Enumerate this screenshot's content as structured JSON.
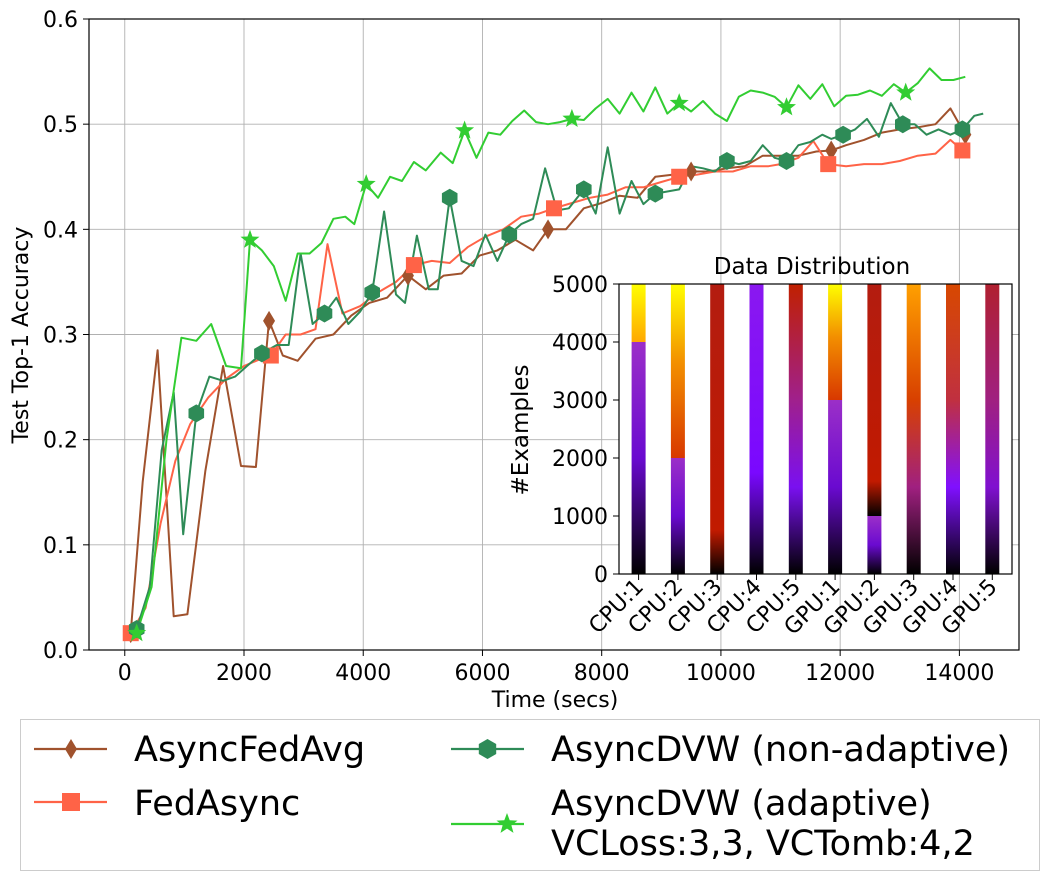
{
  "chart_data": [
    {
      "type": "line",
      "xlabel": "Time (secs)",
      "ylabel": "Test Top-1 Accuracy",
      "xlim": [
        -600,
        15000
      ],
      "ylim": [
        0,
        0.6
      ],
      "xticks": [
        0,
        2000,
        4000,
        6000,
        8000,
        10000,
        12000,
        14000
      ],
      "yticks": [
        0.0,
        0.1,
        0.2,
        0.3,
        0.4,
        0.5,
        0.6
      ],
      "xtick_labels": [
        "0",
        "2000",
        "4000",
        "6000",
        "8000",
        "10000",
        "12000",
        "14000"
      ],
      "ytick_labels": [
        "0.0",
        "0.1",
        "0.2",
        "0.3",
        "0.4",
        "0.5",
        "0.6"
      ],
      "grid": true,
      "series": [
        {
          "name": "AsyncFedAvg",
          "color": "#a0522d",
          "marker": "thin_diamond",
          "x": [
            100,
            300,
            550,
            820,
            1050,
            1350,
            1650,
            1950,
            2200,
            2420,
            2650,
            2900,
            3200,
            3500,
            3800,
            4100,
            4400,
            4750,
            5050,
            5350,
            5650,
            5950,
            6250,
            6550,
            6850,
            7100,
            7400,
            7700,
            8000,
            8300,
            8600,
            8900,
            9200,
            9500,
            9800,
            10100,
            10400,
            10700,
            11000,
            11300,
            11600,
            11850,
            12100,
            12400,
            12700,
            13000,
            13300,
            13600,
            13850,
            14100
          ],
          "y": [
            0.016,
            0.16,
            0.285,
            0.032,
            0.034,
            0.17,
            0.27,
            0.175,
            0.174,
            0.313,
            0.28,
            0.275,
            0.296,
            0.3,
            0.318,
            0.33,
            0.335,
            0.356,
            0.343,
            0.356,
            0.358,
            0.375,
            0.38,
            0.39,
            0.38,
            0.4,
            0.4,
            0.42,
            0.425,
            0.432,
            0.43,
            0.45,
            0.452,
            0.455,
            0.455,
            0.458,
            0.46,
            0.47,
            0.47,
            0.47,
            0.474,
            0.475,
            0.48,
            0.485,
            0.492,
            0.495,
            0.497,
            0.5,
            0.515,
            0.49
          ],
          "marker_indices": [
            0,
            9,
            17,
            25,
            33,
            41,
            49
          ]
        },
        {
          "name": "FedAsync",
          "color": "#ff6347",
          "marker": "square",
          "x": [
            100,
            350,
            600,
            850,
            1100,
            1400,
            1700,
            2000,
            2250,
            2450,
            2700,
            2950,
            3200,
            3400,
            3650,
            3950,
            4250,
            4550,
            4850,
            5150,
            5450,
            5750,
            6050,
            6350,
            6650,
            6950,
            7200,
            7500,
            7800,
            8100,
            8400,
            8700,
            9000,
            9300,
            9600,
            9900,
            10200,
            10500,
            10800,
            11000,
            11300,
            11550,
            11800,
            12100,
            12400,
            12700,
            13000,
            13300,
            13600,
            13850,
            14050
          ],
          "y": [
            0.016,
            0.04,
            0.12,
            0.18,
            0.215,
            0.24,
            0.258,
            0.27,
            0.276,
            0.28,
            0.3,
            0.3,
            0.305,
            0.386,
            0.32,
            0.327,
            0.34,
            0.35,
            0.366,
            0.37,
            0.368,
            0.383,
            0.393,
            0.4,
            0.412,
            0.415,
            0.42,
            0.425,
            0.43,
            0.433,
            0.44,
            0.44,
            0.445,
            0.45,
            0.452,
            0.455,
            0.455,
            0.46,
            0.46,
            0.462,
            0.468,
            0.484,
            0.462,
            0.46,
            0.462,
            0.462,
            0.465,
            0.47,
            0.472,
            0.485,
            0.475
          ],
          "marker_indices": [
            0,
            9,
            18,
            26,
            33,
            42,
            50
          ]
        },
        {
          "name": "AsyncDVW (non-adaptive)",
          "color": "#2e8b57",
          "marker": "hexagon",
          "x": [
            200,
            420,
            620,
            820,
            980,
            1200,
            1420,
            1650,
            1850,
            2050,
            2300,
            2550,
            2750,
            2950,
            3150,
            3350,
            3550,
            3750,
            3950,
            4150,
            4350,
            4550,
            4700,
            4900,
            5100,
            5250,
            5450,
            5650,
            5850,
            6050,
            6250,
            6450,
            6650,
            6850,
            7050,
            7250,
            7450,
            7700,
            7900,
            8100,
            8300,
            8500,
            8700,
            8900,
            9100,
            9300,
            9500,
            9700,
            9900,
            10100,
            10300,
            10500,
            10700,
            10900,
            11100,
            11300,
            11500,
            11700,
            11850,
            12050,
            12250,
            12450,
            12650,
            12850,
            13050,
            13250,
            13450,
            13650,
            13850,
            14050,
            14250,
            14400
          ],
          "y": [
            0.02,
            0.06,
            0.19,
            0.245,
            0.11,
            0.225,
            0.26,
            0.256,
            0.26,
            0.27,
            0.282,
            0.29,
            0.29,
            0.377,
            0.31,
            0.32,
            0.335,
            0.31,
            0.322,
            0.34,
            0.417,
            0.338,
            0.33,
            0.394,
            0.343,
            0.343,
            0.43,
            0.37,
            0.365,
            0.395,
            0.37,
            0.395,
            0.405,
            0.41,
            0.458,
            0.418,
            0.42,
            0.438,
            0.415,
            0.478,
            0.415,
            0.446,
            0.424,
            0.434,
            0.436,
            0.438,
            0.46,
            0.458,
            0.455,
            0.465,
            0.462,
            0.465,
            0.48,
            0.468,
            0.465,
            0.48,
            0.483,
            0.49,
            0.486,
            0.49,
            0.495,
            0.505,
            0.488,
            0.52,
            0.5,
            0.5,
            0.49,
            0.495,
            0.49,
            0.495,
            0.508,
            0.51
          ],
          "marker_indices": [
            0,
            5,
            10,
            15,
            19,
            26,
            31,
            37,
            43,
            49,
            54,
            59,
            64,
            69
          ]
        },
        {
          "name": "AsyncDVW (adaptive)",
          "name_line2": "VCLoss:3,3, VCTomb:4,2",
          "color": "#32cd32",
          "marker": "star",
          "x": [
            200,
            450,
            700,
            950,
            1200,
            1450,
            1700,
            1950,
            2100,
            2300,
            2500,
            2700,
            2900,
            3100,
            3300,
            3500,
            3700,
            3850,
            4050,
            4250,
            4450,
            4650,
            4850,
            5050,
            5300,
            5500,
            5700,
            5900,
            6100,
            6300,
            6500,
            6700,
            6900,
            7100,
            7300,
            7500,
            7700,
            7900,
            8100,
            8300,
            8500,
            8700,
            8900,
            9100,
            9300,
            9500,
            9700,
            9900,
            10100,
            10300,
            10500,
            10700,
            10900,
            11100,
            11300,
            11500,
            11700,
            11900,
            12100,
            12300,
            12500,
            12700,
            12900,
            13100,
            13300,
            13500,
            13700,
            13900,
            14100
          ],
          "y": [
            0.016,
            0.06,
            0.2,
            0.297,
            0.294,
            0.31,
            0.27,
            0.268,
            0.39,
            0.38,
            0.365,
            0.332,
            0.377,
            0.377,
            0.387,
            0.41,
            0.412,
            0.405,
            0.443,
            0.43,
            0.45,
            0.446,
            0.464,
            0.456,
            0.473,
            0.463,
            0.494,
            0.468,
            0.492,
            0.49,
            0.503,
            0.513,
            0.502,
            0.5,
            0.502,
            0.505,
            0.504,
            0.515,
            0.524,
            0.51,
            0.53,
            0.512,
            0.535,
            0.51,
            0.52,
            0.512,
            0.522,
            0.51,
            0.503,
            0.526,
            0.532,
            0.53,
            0.526,
            0.516,
            0.537,
            0.524,
            0.538,
            0.517,
            0.527,
            0.528,
            0.532,
            0.527,
            0.538,
            0.53,
            0.539,
            0.553,
            0.542,
            0.542,
            0.545
          ],
          "marker_indices": [
            0,
            8,
            18,
            26,
            35,
            44,
            53,
            63
          ]
        }
      ]
    },
    {
      "type": "bar",
      "stacked": true,
      "title": "Data Distribution",
      "xlabel": "",
      "ylabel": "#Examples",
      "ylim": [
        0,
        5000
      ],
      "yticks": [
        0,
        1000,
        2000,
        3000,
        4000,
        5000
      ],
      "ytick_labels": [
        "0",
        "1000",
        "2000",
        "3000",
        "4000",
        "5000"
      ],
      "categories": [
        "CPU:1",
        "CPU:2",
        "CPU:3",
        "CPU:4",
        "CPU:5",
        "GPU:1",
        "GPU:2",
        "GPU:3",
        "GPU:4",
        "GPU:5"
      ],
      "segments": [
        [
          {
            "value": 4000,
            "colormap": "purple"
          },
          {
            "value": 1000,
            "colormap": "yellow"
          }
        ],
        [
          {
            "value": 2000,
            "colormap": "purple"
          },
          {
            "value": 3000,
            "colormap": "orange"
          }
        ],
        [
          {
            "value": 5000,
            "colormap": "red"
          }
        ],
        [
          {
            "value": 5000,
            "colormap": "violet"
          }
        ],
        [
          {
            "value": 5000,
            "colormap": "purple-red"
          }
        ],
        [
          {
            "value": 3000,
            "colormap": "purple"
          },
          {
            "value": 2000,
            "colormap": "orange"
          }
        ],
        [
          {
            "value": 1000,
            "colormap": "purple"
          },
          {
            "value": 4000,
            "colormap": "red"
          }
        ],
        [
          {
            "value": 5000,
            "colormap": "magenta-orange"
          }
        ],
        [
          {
            "value": 5000,
            "colormap": "violet-orange"
          }
        ],
        [
          {
            "value": 5000,
            "colormap": "magenta-red"
          }
        ]
      ]
    }
  ],
  "legend": {
    "entries": [
      "AsyncFedAvg",
      "FedAsync",
      "AsyncDVW (non-adaptive)",
      "AsyncDVW (adaptive)"
    ],
    "adaptive_line2": "VCLoss:3,3, VCTomb:4,2"
  }
}
